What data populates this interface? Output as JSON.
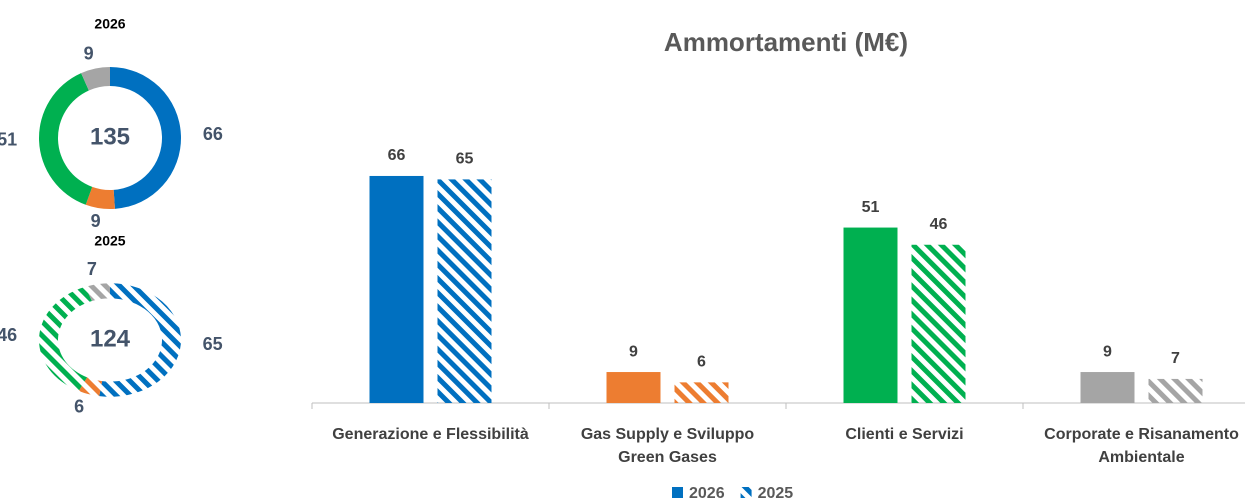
{
  "chart_data": [
    {
      "type": "donut",
      "title": "2026",
      "total": 135,
      "values": [
        66,
        9,
        51,
        9
      ],
      "colors": [
        "#0070c0",
        "#ed7d31",
        "#00b050",
        "#a5a5a5"
      ]
    },
    {
      "type": "donut",
      "title": "2025",
      "total": 124,
      "values": [
        65,
        6,
        46,
        7
      ],
      "colors": [
        "#0070c0",
        "#ed7d31",
        "#00b050",
        "#a5a5a5"
      ],
      "pattern": "hatch"
    },
    {
      "type": "bar",
      "title": "Ammortamenti (M€)",
      "categories": [
        "Generazione e Flessibilità",
        "Gas Supply e Sviluppo Green Gases",
        "Clienti e Servizi",
        "Corporate e Risanamento Ambientale"
      ],
      "series": [
        {
          "name": "2026",
          "colors": [
            "#0070c0",
            "#ed7d31",
            "#00b050",
            "#a5a5a5"
          ],
          "values": [
            66,
            9,
            51,
            9
          ]
        },
        {
          "name": "2025",
          "colors": [
            "#0070c0",
            "#ed7d31",
            "#00b050",
            "#a5a5a5"
          ],
          "values": [
            65,
            6,
            46,
            7
          ],
          "pattern": "hatch"
        }
      ],
      "ylim": [
        0,
        75
      ],
      "legend": "bottom"
    }
  ]
}
